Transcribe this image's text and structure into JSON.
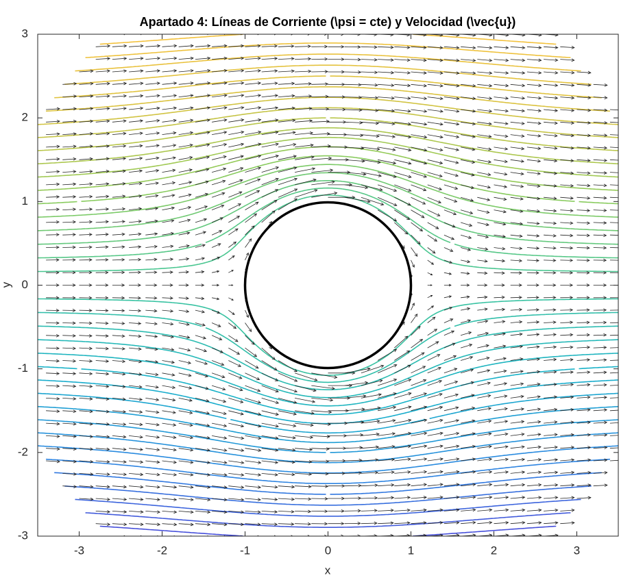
{
  "chart_data": {
    "type": "contour",
    "title": "Apartado 4: Líneas de Corriente (\\psi = cte) y Velocidad (\\vec{u})",
    "xlabel": "x",
    "ylabel": "y",
    "xlim": [
      -3.5,
      3.5
    ],
    "ylim": [
      -3,
      3
    ],
    "xticks": [
      -3,
      -2,
      -1,
      0,
      1,
      2,
      3
    ],
    "yticks": [
      -3,
      -2,
      -1,
      0,
      1,
      2,
      3
    ],
    "grid": false,
    "levels": [
      -2.85,
      -2.7,
      -2.55,
      -2.4,
      -2.25,
      -2.1,
      -1.95,
      -1.8,
      -1.65,
      -1.5,
      -1.35,
      -1.2,
      -1.05,
      -0.9,
      -0.75,
      -0.6,
      -0.45,
      -0.3,
      -0.15,
      0,
      0.15,
      0.3,
      0.45,
      0.6,
      0.75,
      0.9,
      1.05,
      1.2,
      1.35,
      1.5,
      1.65,
      1.8,
      1.95,
      2.1,
      2.25,
      2.4,
      2.55,
      2.7,
      2.85
    ],
    "colormap": [
      "#4a44d8",
      "#2a86e2",
      "#15b0c9",
      "#3cc59a",
      "#8ccb5a",
      "#d9c23e",
      "#f8c13a"
    ],
    "quiver_x": [
      -3.4,
      -3.2,
      -3,
      -2.8,
      -2.6,
      -2.4,
      -2.2,
      -2,
      -1.8,
      -1.6,
      -1.4,
      -1.2,
      -1,
      -0.8,
      -0.6,
      -0.4,
      -0.2,
      0,
      0.2,
      0.4,
      0.6,
      0.8,
      1,
      1.2,
      1.4,
      1.6,
      1.8,
      2,
      2.2,
      2.4,
      2.6,
      2.8,
      3,
      3.2,
      3.4
    ],
    "quiver_y": [
      -3,
      -2.85,
      -2.7,
      -2.55,
      -2.4,
      -2.25,
      -2.1,
      -1.95,
      -1.8,
      -1.65,
      -1.5,
      -1.35,
      -1.2,
      -1.05,
      -0.9,
      -0.75,
      -0.6,
      -0.45,
      -0.3,
      -0.15,
      0,
      0.15,
      0.3,
      0.45,
      0.6,
      0.75,
      0.9,
      1.05,
      1.2,
      1.35,
      1.5,
      1.65,
      1.8,
      1.95,
      2.1,
      2.25,
      2.4,
      2.55,
      2.7,
      2.85,
      3
    ],
    "quiver_color": "#222222",
    "obstacle": {
      "center": [
        0,
        0
      ],
      "radius": 1,
      "color": "#000000"
    },
    "domain_radius": 4
  }
}
